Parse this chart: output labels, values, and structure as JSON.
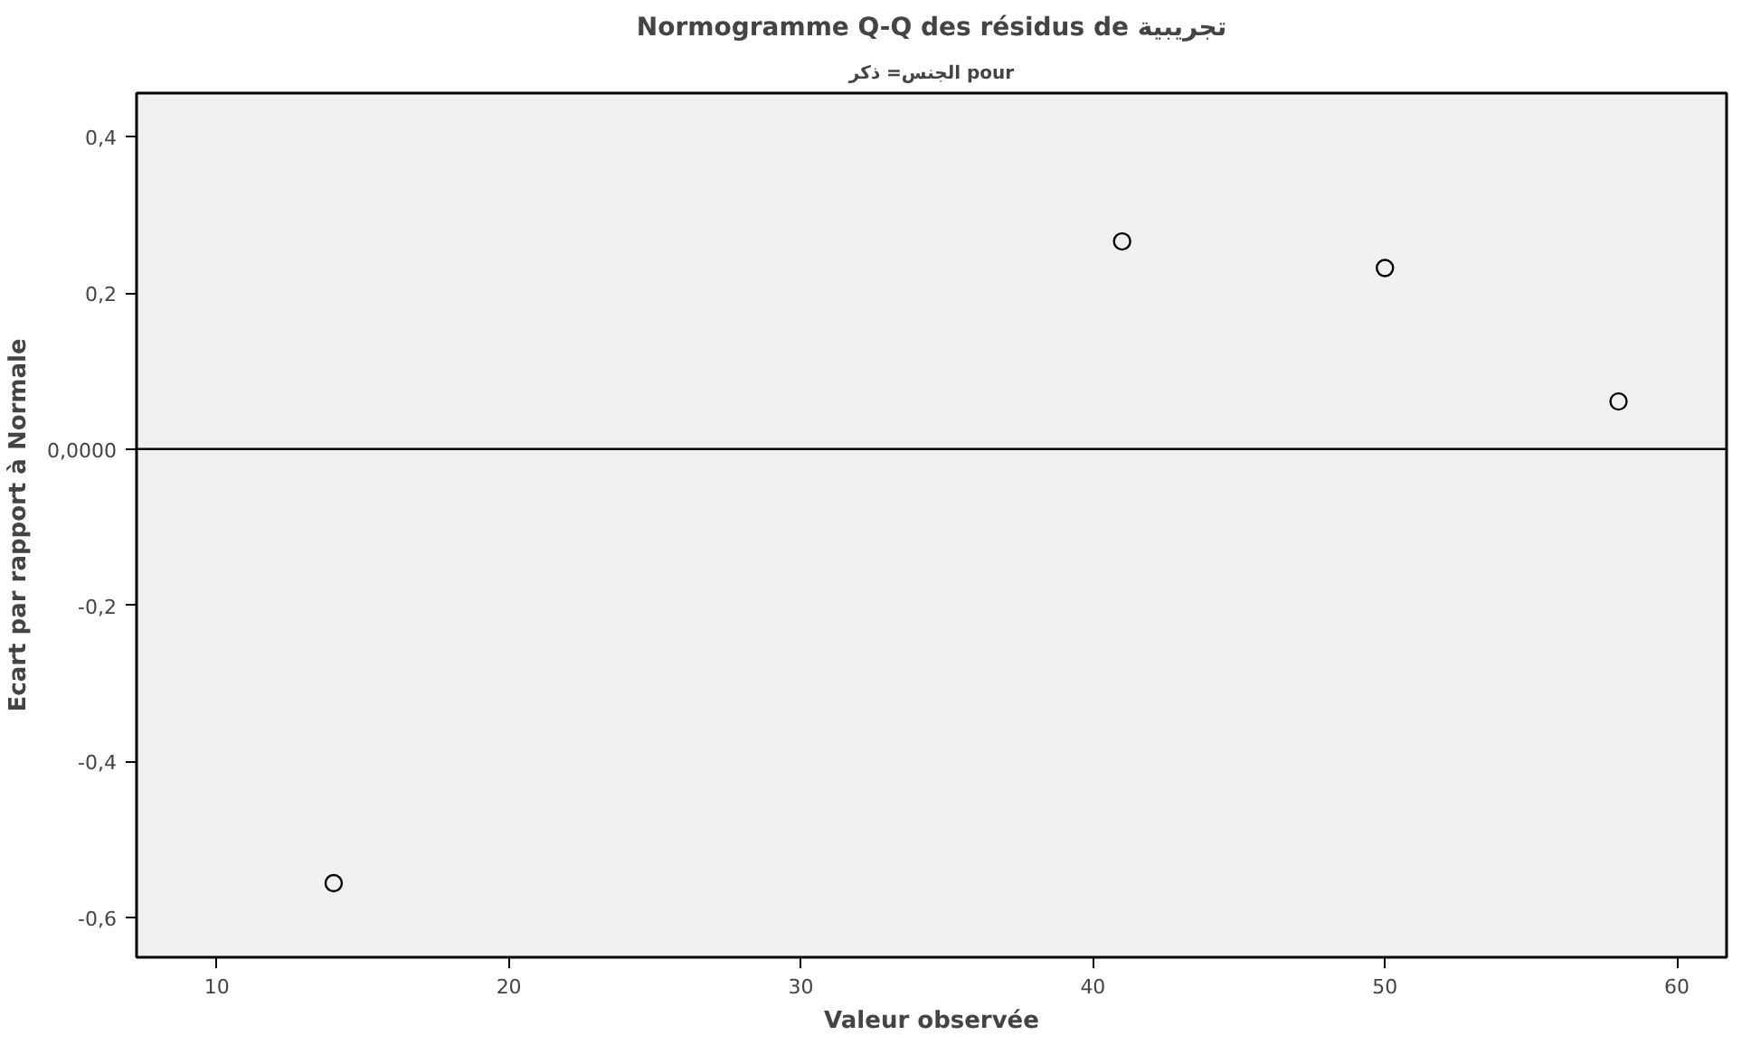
{
  "chart_data": {
    "type": "scatter",
    "title": "Normogramme Q-Q des résidus de تجريبية",
    "subtitle": "الجنس= ذكر pour",
    "xlabel": "Valeur observée",
    "ylabel": "Ecart par rapport à Normale",
    "x": [
      14,
      41,
      50,
      58
    ],
    "series": [
      {
        "color": "#000000",
        "values": [
          -0.556,
          0.266,
          0.232,
          0.061
        ]
      }
    ],
    "marker": "circle",
    "grid": false,
    "xlim": [
      7.25,
      61.7
    ],
    "ylim": [
      -0.651,
      0.456
    ],
    "xticks": [
      10,
      20,
      30,
      40,
      50,
      60
    ],
    "yticks": [
      {
        "value": 0.4,
        "label": "0,4"
      },
      {
        "value": 0.2,
        "label": "0,2"
      },
      {
        "value": 0,
        "label": "0,0000"
      },
      {
        "value": -0.2,
        "label": "-0,2"
      },
      {
        "value": -0.4,
        "label": "-0,4"
      },
      {
        "value": -0.6,
        "label": "-0,6"
      }
    ],
    "ref_lines": [
      {
        "axis": "y",
        "value": 0,
        "label": null,
        "color": "#000000"
      }
    ]
  }
}
